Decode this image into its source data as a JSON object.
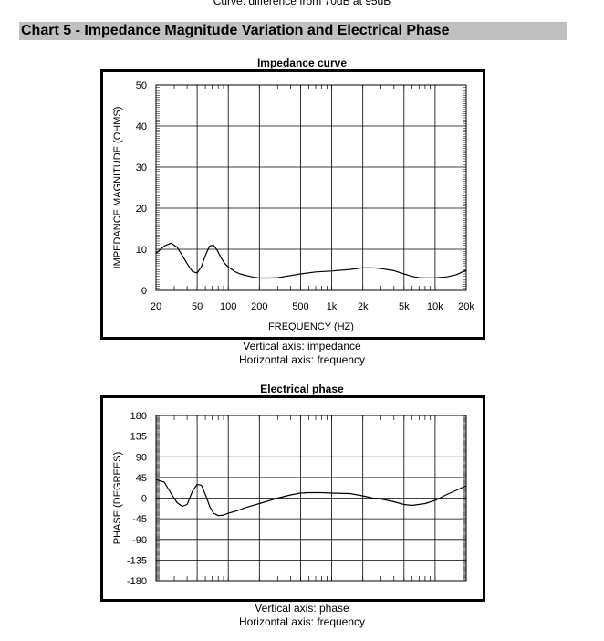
{
  "page": {
    "top_caption": "Curve: difference from 70dB at 95dB",
    "section_header": "Chart 5 - Impedance Magnitude Variation and Electrical Phase"
  },
  "impedance_caption": {
    "line1": "Vertical axis: impedance",
    "line2": "Horizontal axis: frequency"
  },
  "phase_caption": {
    "line1": "Vertical axis: phase",
    "line2": "Horizontal axis: frequency"
  },
  "chart_data": [
    {
      "type": "line",
      "title": "Impedance curve",
      "xlabel": "FREQUENCY  (HZ)",
      "ylabel": "IMPEDANCE MAGNITUDE  (OHMS)",
      "xscale": "log",
      "xlim": [
        20,
        20000
      ],
      "ylim": [
        0,
        50
      ],
      "yticks": [
        0,
        10,
        20,
        30,
        40,
        50
      ],
      "xtick_labels": [
        {
          "value": 20,
          "label": "20"
        },
        {
          "value": 50,
          "label": "50"
        },
        {
          "value": 100,
          "label": "100"
        },
        {
          "value": 200,
          "label": "200"
        },
        {
          "value": 500,
          "label": "500"
        },
        {
          "value": 1000,
          "label": "1k"
        },
        {
          "value": 2000,
          "label": "2k"
        },
        {
          "value": 5000,
          "label": "5k"
        },
        {
          "value": 10000,
          "label": "10k"
        },
        {
          "value": 20000,
          "label": "20k"
        }
      ],
      "grid": true,
      "series": [
        {
          "x": [
            20,
            24,
            28,
            32,
            36,
            40,
            45,
            50,
            55,
            60,
            66,
            72,
            78,
            85,
            92,
            100,
            115,
            130,
            150,
            175,
            200,
            250,
            300,
            400,
            500,
            700,
            1000,
            1500,
            2000,
            2500,
            3000,
            4000,
            5000,
            6000,
            7000,
            8000,
            10000,
            13000,
            16000,
            20000
          ],
          "y": [
            9,
            10.8,
            11.5,
            10.5,
            8.5,
            6.5,
            4.6,
            4.2,
            5.8,
            8.5,
            10.8,
            11,
            9.8,
            8,
            6.6,
            5.7,
            4.6,
            4,
            3.6,
            3.2,
            3,
            3,
            3.1,
            3.6,
            4,
            4.5,
            4.7,
            5.1,
            5.5,
            5.5,
            5.3,
            4.8,
            4,
            3.4,
            3.1,
            3.05,
            3.05,
            3.3,
            3.8,
            4.9
          ]
        }
      ]
    },
    {
      "type": "line",
      "title": "Electrical phase",
      "xlabel": "",
      "ylabel": "PHASE  (DEGREES)",
      "xscale": "log",
      "xlim": [
        20,
        20000
      ],
      "ylim": [
        -180,
        180
      ],
      "yticks": [
        -180,
        -135,
        -90,
        -45,
        0,
        45,
        90,
        135,
        180
      ],
      "grid": true,
      "series": [
        {
          "x": [
            20,
            24,
            28,
            32,
            36,
            40,
            45,
            50,
            55,
            60,
            66,
            72,
            80,
            90,
            100,
            120,
            150,
            200,
            300,
            400,
            500,
            600,
            700,
            800,
            1000,
            1500,
            2000,
            2500,
            3000,
            4000,
            5000,
            6000,
            8000,
            10000,
            13000,
            16000,
            20000
          ],
          "y": [
            40,
            35,
            10,
            -10,
            -18,
            -14,
            15,
            30,
            28,
            8,
            -18,
            -33,
            -38,
            -37,
            -33,
            -28,
            -20,
            -12,
            0,
            7,
            11,
            12,
            12,
            12,
            11,
            10,
            5,
            0,
            -2,
            -8,
            -14,
            -16,
            -12,
            -5,
            8,
            17,
            27
          ]
        }
      ]
    }
  ]
}
